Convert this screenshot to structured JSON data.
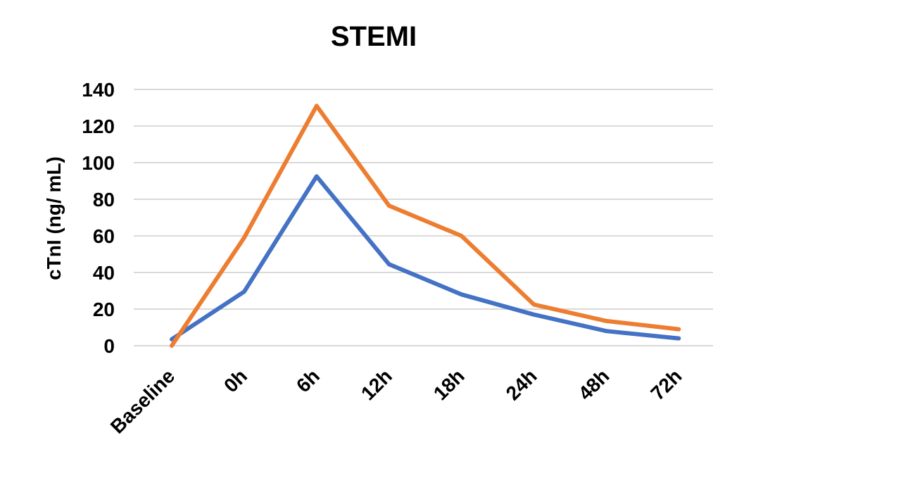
{
  "chart_data": {
    "type": "line",
    "title": "STEMI",
    "xlabel": "",
    "ylabel": "cTnI (ng/ mL)",
    "categories": [
      "Baseline",
      "0h",
      "6h",
      "12h",
      "18h",
      "24h",
      "48h",
      "72h"
    ],
    "ylim": [
      0,
      140
    ],
    "yticks": [
      0,
      20,
      40,
      60,
      80,
      100,
      120,
      140
    ],
    "grid": true,
    "legend": "none",
    "series": [
      {
        "color": "#4472c4",
        "values": [
          3.5,
          29.5,
          92.5,
          44.5,
          28,
          17,
          8,
          4
        ]
      },
      {
        "color": "#ed7d31",
        "values": [
          0,
          59,
          131,
          76.5,
          60,
          22.5,
          13.5,
          9
        ]
      }
    ]
  }
}
